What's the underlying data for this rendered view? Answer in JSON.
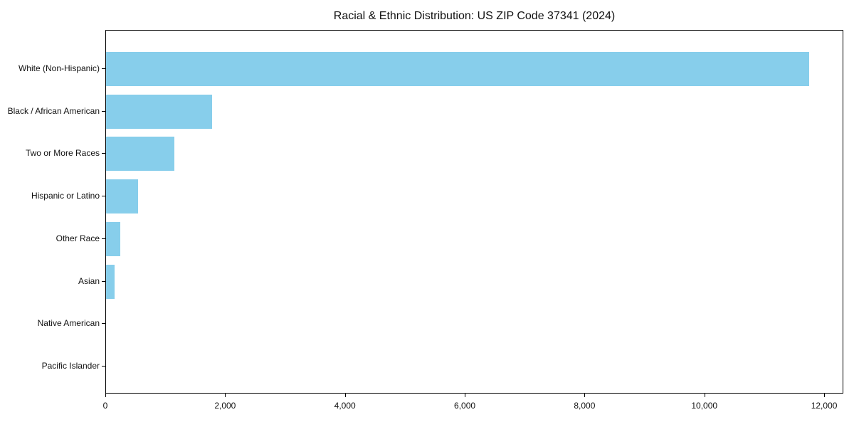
{
  "chart_data": {
    "type": "bar",
    "orientation": "horizontal",
    "title": "Racial & Ethnic Distribution: US ZIP Code 37341 (2024)",
    "categories": [
      "White (Non-Hispanic)",
      "Black / African American",
      "Two or More Races",
      "Hispanic or Latino",
      "Other Race",
      "Asian",
      "Native American",
      "Pacific Islander"
    ],
    "values": [
      11740,
      1770,
      1140,
      540,
      240,
      140,
      0,
      0
    ],
    "xlabel": "",
    "ylabel": "",
    "xlim": [
      0,
      12320
    ],
    "x_ticks": [
      0,
      2000,
      4000,
      6000,
      8000,
      10000,
      12000
    ],
    "x_tick_labels": [
      "0",
      "2,000",
      "4,000",
      "6,000",
      "8,000",
      "10,000",
      "12,000"
    ],
    "bar_color": "#87CEEB",
    "axis_color": "#000000",
    "text_color": "#111111",
    "background_color": "#ffffff",
    "grid": false,
    "legend": null
  }
}
